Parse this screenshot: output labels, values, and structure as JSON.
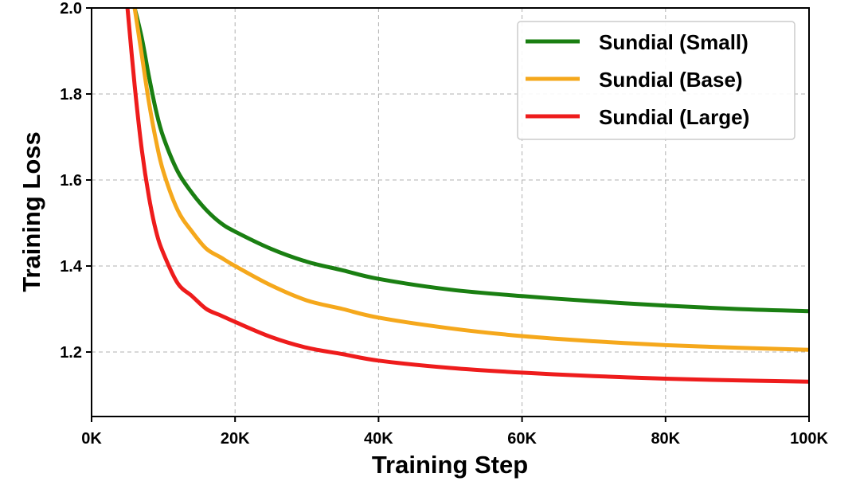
{
  "chart_data": {
    "type": "line",
    "title": "",
    "xlabel": "Training Step",
    "ylabel": "Training Loss",
    "xlim": [
      0,
      100000
    ],
    "ylim": [
      1.05,
      2.0
    ],
    "x_ticks": [
      0,
      20000,
      40000,
      60000,
      80000,
      100000
    ],
    "x_tick_labels": [
      "0K",
      "20K",
      "40K",
      "60K",
      "80K",
      "100K"
    ],
    "y_ticks": [
      1.2,
      1.4,
      1.6,
      1.8,
      2.0
    ],
    "y_tick_labels": [
      "1.2",
      "1.4",
      "1.6",
      "1.8",
      "2.0"
    ],
    "grid": true,
    "legend_position": "top-right",
    "series": [
      {
        "name": "Sundial (Small)",
        "color": "#1a7f12",
        "points": [
          [
            6000,
            2.0
          ],
          [
            7000,
            1.93
          ],
          [
            8000,
            1.84
          ],
          [
            9000,
            1.76
          ],
          [
            10000,
            1.7
          ],
          [
            12000,
            1.62
          ],
          [
            14000,
            1.57
          ],
          [
            16000,
            1.53
          ],
          [
            18000,
            1.5
          ],
          [
            20000,
            1.48
          ],
          [
            25000,
            1.44
          ],
          [
            30000,
            1.41
          ],
          [
            35000,
            1.39
          ],
          [
            40000,
            1.37
          ],
          [
            50000,
            1.345
          ],
          [
            60000,
            1.33
          ],
          [
            70000,
            1.318
          ],
          [
            80000,
            1.308
          ],
          [
            90000,
            1.3
          ],
          [
            100000,
            1.295
          ]
        ]
      },
      {
        "name": "Sundial (Base)",
        "color": "#f5a81c",
        "points": [
          [
            6000,
            2.0
          ],
          [
            7000,
            1.89
          ],
          [
            8000,
            1.78
          ],
          [
            9000,
            1.69
          ],
          [
            10000,
            1.62
          ],
          [
            12000,
            1.53
          ],
          [
            14000,
            1.48
          ],
          [
            16000,
            1.44
          ],
          [
            18000,
            1.42
          ],
          [
            20000,
            1.4
          ],
          [
            25000,
            1.355
          ],
          [
            30000,
            1.32
          ],
          [
            35000,
            1.3
          ],
          [
            40000,
            1.28
          ],
          [
            50000,
            1.255
          ],
          [
            60000,
            1.237
          ],
          [
            70000,
            1.225
          ],
          [
            80000,
            1.216
          ],
          [
            90000,
            1.21
          ],
          [
            100000,
            1.205
          ]
        ]
      },
      {
        "name": "Sundial (Large)",
        "color": "#ee1c1c",
        "points": [
          [
            5000,
            2.0
          ],
          [
            6000,
            1.82
          ],
          [
            7000,
            1.67
          ],
          [
            8000,
            1.56
          ],
          [
            9000,
            1.48
          ],
          [
            10000,
            1.43
          ],
          [
            12000,
            1.36
          ],
          [
            14000,
            1.33
          ],
          [
            16000,
            1.3
          ],
          [
            18000,
            1.285
          ],
          [
            20000,
            1.27
          ],
          [
            25000,
            1.235
          ],
          [
            30000,
            1.21
          ],
          [
            35000,
            1.195
          ],
          [
            40000,
            1.18
          ],
          [
            50000,
            1.163
          ],
          [
            60000,
            1.152
          ],
          [
            70000,
            1.144
          ],
          [
            80000,
            1.138
          ],
          [
            90000,
            1.134
          ],
          [
            100000,
            1.131
          ]
        ]
      }
    ]
  }
}
